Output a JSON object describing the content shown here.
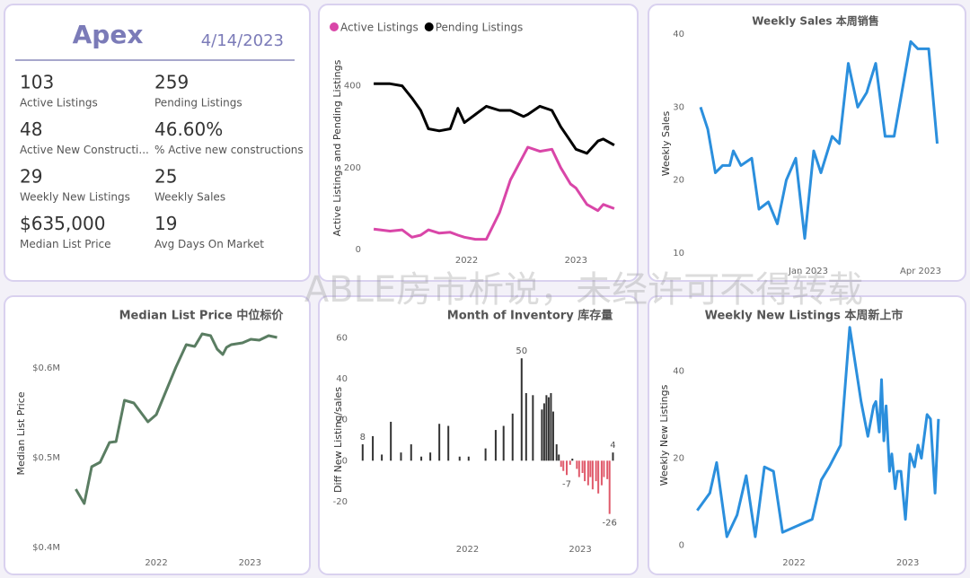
{
  "kpi": {
    "title": "Apex",
    "date": "4/14/2023",
    "items": [
      {
        "value": "103",
        "label": "Active Listings"
      },
      {
        "value": "259",
        "label": "Pending Listings"
      },
      {
        "value": "48",
        "label": "Active New Constructi..."
      },
      {
        "value": "46.60%",
        "label": "% Active new constructions"
      },
      {
        "value": "29",
        "label": "Weekly New Listings"
      },
      {
        "value": "25",
        "label": "Weekly Sales"
      },
      {
        "value": "$635,000",
        "label": "Median List Price"
      },
      {
        "value": "19",
        "label": "Avg Days On Market"
      }
    ]
  },
  "watermark": "ABLE房市析说，未经许可不得转载",
  "chart_data": [
    {
      "type": "line",
      "ylabel": "Active Listings and Pending Listings",
      "x": [
        2021.15,
        2021.3,
        2021.41,
        2021.5,
        2021.58,
        2021.65,
        2021.75,
        2021.85,
        2021.92,
        2021.98,
        2022.08,
        2022.18,
        2022.3,
        2022.4,
        2022.52,
        2022.56,
        2022.67,
        2022.78,
        2022.86,
        2022.95,
        2023.0,
        2023.1,
        2023.2,
        2023.25,
        2023.35
      ],
      "series": [
        {
          "name": "Active Listings",
          "color": "#d946a8",
          "values": [
            50,
            45,
            48,
            30,
            35,
            48,
            40,
            42,
            35,
            30,
            25,
            25,
            90,
            170,
            230,
            250,
            240,
            245,
            200,
            160,
            150,
            110,
            95,
            110,
            100
          ]
        },
        {
          "name": "Pending Listings",
          "color": "#000000",
          "values": [
            405,
            405,
            400,
            370,
            340,
            295,
            290,
            295,
            345,
            310,
            330,
            350,
            340,
            340,
            325,
            330,
            350,
            340,
            300,
            265,
            245,
            235,
            265,
            270,
            255
          ]
        }
      ],
      "xlim": [
        2021.1,
        2023.4
      ],
      "xticks": [
        2022,
        2023
      ],
      "ylim": [
        0,
        500
      ],
      "yticks": [
        0,
        200,
        400
      ],
      "legend": "top-left",
      "grid": false
    },
    {
      "type": "line",
      "title": "Weekly Sales 本周销售",
      "ylabel": "Weekly Sales",
      "color": "#2b8fdd",
      "x": [
        2022.76,
        2022.776,
        2022.793,
        2022.809,
        2022.825,
        2022.833,
        2022.85,
        2022.874,
        2022.89,
        2022.911,
        2022.931,
        2022.951,
        2022.972,
        2022.992,
        2023.012,
        2023.028,
        2023.053,
        2023.069,
        2023.089,
        2023.11,
        2023.13,
        2023.15,
        2023.171,
        2023.191,
        2023.228,
        2023.244,
        2023.268,
        2023.287
      ],
      "values": [
        30,
        27,
        21,
        22,
        22,
        24,
        22,
        23,
        16,
        17,
        14,
        20,
        23,
        12,
        24,
        21,
        26,
        25,
        36,
        30,
        32,
        36,
        26,
        26,
        39,
        38,
        38,
        25
      ],
      "xlim": [
        2022.74,
        2023.31
      ],
      "xticks": [
        {
          "value": 2023.0,
          "label": "Jan 2023"
        },
        {
          "value": 2023.25,
          "label": "Apr 2023"
        }
      ],
      "ylim": [
        9,
        41
      ],
      "yticks": [
        10,
        20,
        30,
        40
      ],
      "grid": false
    },
    {
      "type": "line",
      "title": "Median List Price  中位标价",
      "ylabel": "Median List Price",
      "color": "#5a7d62",
      "x": [
        2021.14,
        2021.23,
        2021.31,
        2021.4,
        2021.5,
        2021.57,
        2021.66,
        2021.76,
        2021.91,
        2022.0,
        2022.21,
        2022.32,
        2022.41,
        2022.49,
        2022.58,
        2022.65,
        2022.71,
        2022.75,
        2022.8,
        2022.92,
        2023.01,
        2023.1,
        2023.2,
        2023.29
      ],
      "values": [
        465000,
        449000,
        490000,
        495000,
        517000,
        518000,
        564000,
        561000,
        540000,
        548000,
        601000,
        626000,
        624000,
        638000,
        636000,
        621000,
        615000,
        623000,
        626000,
        628000,
        632000,
        631000,
        636000,
        634000
      ],
      "xlim": [
        2021.05,
        2023.4
      ],
      "xticks": [
        2022,
        2023
      ],
      "ylim": [
        395000,
        650000
      ],
      "yticks": [
        {
          "value": 400000,
          "label": "$0.4M"
        },
        {
          "value": 500000,
          "label": "$0.5M"
        },
        {
          "value": 600000,
          "label": "$0.6M"
        }
      ],
      "grid": false
    },
    {
      "type": "bar",
      "title": "Month of Inventory 库存量",
      "ylabel": "Diff New Listing/sales",
      "color": "#333333",
      "negative_color": "#e05a6b",
      "x": [
        2021.07,
        2021.16,
        2021.24,
        2021.32,
        2021.41,
        2021.5,
        2021.59,
        2021.67,
        2021.75,
        2021.83,
        2021.93,
        2022.01,
        2022.16,
        2022.25,
        2022.32,
        2022.4,
        2022.48,
        2022.52,
        2022.58,
        2022.66,
        2022.68,
        2022.7,
        2022.72,
        2022.74,
        2022.76,
        2022.79,
        2022.81,
        2022.83,
        2022.85,
        2022.88,
        2022.91,
        2022.93,
        2022.97,
        2022.99,
        2023.02,
        2023.04,
        2023.07,
        2023.09,
        2023.11,
        2023.14,
        2023.16,
        2023.19,
        2023.21,
        2023.24,
        2023.26,
        2023.29
      ],
      "values": [
        8,
        12,
        3,
        19,
        4,
        8,
        2,
        4,
        18,
        17,
        2,
        2,
        6,
        15,
        17,
        23,
        50,
        33,
        32,
        25,
        28,
        32,
        31,
        33,
        24,
        8,
        3,
        -3,
        -5,
        -7,
        -2,
        1,
        -4,
        -8,
        -6,
        -10,
        -12,
        -8,
        -14,
        -10,
        -16,
        -12,
        -8,
        -9,
        -26,
        4
      ],
      "value_labels": [
        "8",
        null,
        null,
        null,
        null,
        null,
        null,
        null,
        null,
        null,
        null,
        null,
        null,
        null,
        null,
        null,
        "50",
        null,
        null,
        null,
        null,
        null,
        null,
        null,
        null,
        null,
        null,
        null,
        null,
        "-7",
        null,
        null,
        null,
        null,
        null,
        null,
        null,
        null,
        null,
        null,
        null,
        null,
        null,
        null,
        "-26",
        "4"
      ],
      "xlim": [
        2021.0,
        2023.35
      ],
      "xticks": [
        2022,
        2023
      ],
      "ylim": [
        -38,
        65
      ],
      "yticks": [
        -20,
        0,
        20,
        40,
        60
      ],
      "grid": false
    },
    {
      "type": "line",
      "title": "Weekly New Listings  本周新上市",
      "ylabel": "Weekly New Listings",
      "color": "#2b8fdd",
      "x": [
        2021.15,
        2021.26,
        2021.32,
        2021.41,
        2021.5,
        2021.58,
        2021.66,
        2021.74,
        2021.82,
        2021.9,
        2022.16,
        2022.24,
        2022.31,
        2022.41,
        2022.49,
        2022.59,
        2022.65,
        2022.7,
        2022.72,
        2022.75,
        2022.77,
        2022.79,
        2022.81,
        2022.84,
        2022.86,
        2022.89,
        2022.91,
        2022.94,
        2022.98,
        2023.02,
        2023.06,
        2023.09,
        2023.12,
        2023.17,
        2023.2,
        2023.24,
        2023.27
      ],
      "values": [
        8,
        12,
        19,
        2,
        7,
        16,
        2,
        18,
        17,
        3,
        6,
        15,
        18,
        23,
        50,
        33,
        25,
        32,
        33,
        26,
        38,
        24,
        32,
        17,
        21,
        13,
        17,
        17,
        6,
        21,
        18,
        23,
        20,
        30,
        29,
        12,
        29
      ],
      "xlim": [
        2021.1,
        2023.35
      ],
      "xticks": [
        2022,
        2023
      ],
      "ylim": [
        -1.5,
        52
      ],
      "yticks": [
        0,
        20,
        40
      ],
      "grid": false
    }
  ]
}
